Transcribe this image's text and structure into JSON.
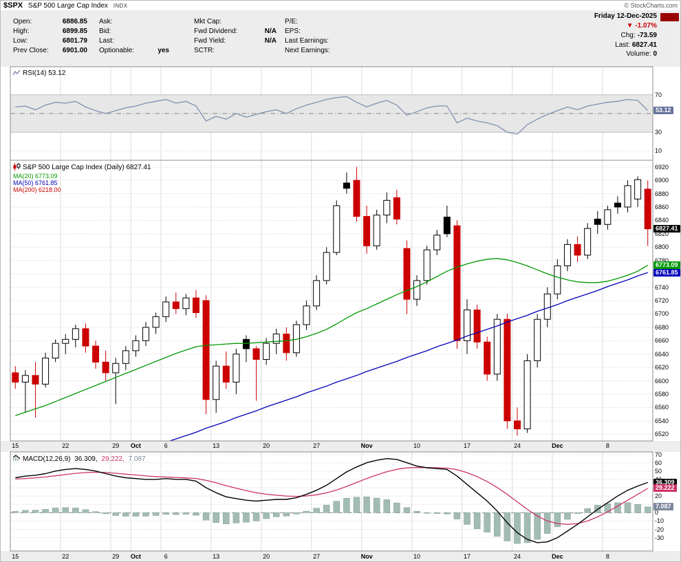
{
  "header": {
    "symbol": "$SPX",
    "name": "S&P 500 Large Cap Index",
    "exchange": "INDX",
    "copyright": "© StockCharts.com"
  },
  "quote": {
    "date": "Friday 12-Dec-2025",
    "columns": [
      [
        {
          "label": "Open:",
          "value": "6886.85"
        },
        {
          "label": "High:",
          "value": "6899.85"
        },
        {
          "label": "Low:",
          "value": "6801.79"
        },
        {
          "label": "Prev Close:",
          "value": "6901.00"
        }
      ],
      [
        {
          "label": "Ask:",
          "value": ""
        },
        {
          "label": "Bid:",
          "value": ""
        },
        {
          "label": "Last:",
          "value": ""
        },
        {
          "label": "Optionable:",
          "value": "yes"
        }
      ],
      [
        {
          "label": "Mkt Cap:",
          "value": ""
        },
        {
          "label": "Fwd Dividend:",
          "value": "N/A"
        },
        {
          "label": "Fwd Yield:",
          "value": "N/A"
        },
        {
          "label": "SCTR:",
          "value": ""
        }
      ],
      [
        {
          "label": "P/E:",
          "value": ""
        },
        {
          "label": "EPS:",
          "value": ""
        },
        {
          "label": "Last Earnings:",
          "value": ""
        },
        {
          "label": "Next Earnings:",
          "value": ""
        }
      ]
    ],
    "change": {
      "arrow": "▼",
      "pct": "-1.07%",
      "rows": [
        {
          "label": "Chg:",
          "value": "-73.59"
        },
        {
          "label": "Last:",
          "value": "6827.41"
        },
        {
          "label": "Volume:",
          "value": "0"
        }
      ]
    }
  },
  "colors": {
    "up_candle": "#000000",
    "down_candle": "#cc0000",
    "ma20": "#009900",
    "ma50": "#0000bb",
    "ma200": "#cc0000",
    "rsi_line": "#8191b2",
    "rsi_box": "#66729b",
    "macd_line": "#000000",
    "signal_line": "#cc3366",
    "histogram": "#a2bcb2",
    "histogram_border": "#86a096",
    "hist_box": "#7d889e",
    "accent_red": "#cc0000",
    "date_box": "#990000",
    "grid_v": "#dcdcdc",
    "grid_h": "#cfcfcf",
    "panel_border": "#8c8c8c",
    "strip_bg": "#ededed"
  },
  "chart_data": {
    "type": "candlestick",
    "x_labels": [
      {
        "idx": 0,
        "label": "15"
      },
      {
        "idx": 5,
        "label": "22"
      },
      {
        "idx": 10,
        "label": "29"
      },
      {
        "idx": 12,
        "label": "Oct"
      },
      {
        "idx": 15,
        "label": "6"
      },
      {
        "idx": 20,
        "label": "13"
      },
      {
        "idx": 25,
        "label": "20"
      },
      {
        "idx": 30,
        "label": "27"
      },
      {
        "idx": 35,
        "label": "Nov"
      },
      {
        "idx": 40,
        "label": "10"
      },
      {
        "idx": 45,
        "label": "17"
      },
      {
        "idx": 50,
        "label": "24"
      },
      {
        "idx": 54,
        "label": "Dec"
      },
      {
        "idx": 59,
        "label": "8"
      }
    ],
    "price_panel": {
      "title": "S&P 500 Large Cap Index (Daily)",
      "last": "6827.41",
      "ylim": [
        6510,
        6930
      ],
      "yticks": [
        6920,
        6900,
        6880,
        6860,
        6840,
        6820,
        6800,
        6780,
        6760,
        6740,
        6720,
        6700,
        6680,
        6660,
        6640,
        6620,
        6600,
        6580,
        6560,
        6540,
        6520
      ],
      "legend": [
        {
          "label": "MA(20)",
          "value": "6773.09",
          "color": "#009900"
        },
        {
          "label": "MA(50)",
          "value": "6761.85",
          "color": "#0000bb"
        },
        {
          "label": "MA(200)",
          "value": "6218.00",
          "color": "#cc0000"
        }
      ],
      "price_boxes": [
        {
          "value": 6827.41,
          "text": "6827.41",
          "bg": "#000000"
        },
        {
          "value": 6773.09,
          "text": "6773.09",
          "bg": "#009900"
        },
        {
          "value": 6761.85,
          "text": "6761.85",
          "bg": "#0000bb"
        }
      ],
      "candles": [
        [
          6612,
          6622,
          6588,
          6598
        ],
        [
          6598,
          6616,
          6552,
          6608
        ],
        [
          6608,
          6628,
          6545,
          6595
        ],
        [
          6595,
          6642,
          6590,
          6634
        ],
        [
          6634,
          6662,
          6628,
          6656
        ],
        [
          6656,
          6670,
          6640,
          6662
        ],
        [
          6662,
          6684,
          6650,
          6678
        ],
        [
          6678,
          6686,
          6642,
          6652
        ],
        [
          6652,
          6660,
          6618,
          6628
        ],
        [
          6628,
          6645,
          6600,
          6612
        ],
        [
          6612,
          6634,
          6565,
          6626
        ],
        [
          6626,
          6652,
          6616,
          6645
        ],
        [
          6645,
          6668,
          6636,
          6660
        ],
        [
          6660,
          6688,
          6652,
          6680
        ],
        [
          6680,
          6702,
          6670,
          6696
        ],
        [
          6696,
          6726,
          6688,
          6718
        ],
        [
          6718,
          6732,
          6700,
          6708
        ],
        [
          6708,
          6730,
          6698,
          6724
        ],
        [
          6724,
          6736,
          6694,
          6702
        ],
        [
          6720,
          6728,
          6550,
          6572
        ],
        [
          6572,
          6630,
          6552,
          6622
        ],
        [
          6622,
          6644,
          6588,
          6598
        ],
        [
          6598,
          6648,
          6580,
          6640
        ],
        [
          6662,
          6668,
          6628,
          6648
        ],
        [
          6648,
          6652,
          6570,
          6632
        ],
        [
          6632,
          6664,
          6624,
          6656
        ],
        [
          6656,
          6678,
          6640,
          6670
        ],
        [
          6670,
          6680,
          6630,
          6642
        ],
        [
          6642,
          6690,
          6636,
          6684
        ],
        [
          6684,
          6720,
          6676,
          6712
        ],
        [
          6712,
          6758,
          6706,
          6750
        ],
        [
          6750,
          6800,
          6744,
          6792
        ],
        [
          6792,
          6870,
          6788,
          6862
        ],
        [
          6896,
          6912,
          6880,
          6888
        ],
        [
          6900,
          6920,
          6838,
          6846
        ],
        [
          6846,
          6862,
          6790,
          6802
        ],
        [
          6802,
          6856,
          6796,
          6848
        ],
        [
          6848,
          6882,
          6836,
          6870
        ],
        [
          6874,
          6886,
          6834,
          6842
        ],
        [
          6798,
          6810,
          6700,
          6722
        ],
        [
          6722,
          6758,
          6712,
          6750
        ],
        [
          6750,
          6802,
          6744,
          6796
        ],
        [
          6796,
          6826,
          6788,
          6818
        ],
        [
          6845,
          6862,
          6815,
          6820
        ],
        [
          6832,
          6840,
          6648,
          6660
        ],
        [
          6660,
          6722,
          6640,
          6706
        ],
        [
          6706,
          6714,
          6648,
          6658
        ],
        [
          6658,
          6666,
          6600,
          6610
        ],
        [
          6610,
          6700,
          6600,
          6692
        ],
        [
          6692,
          6700,
          6528,
          6540
        ],
        [
          6540,
          6560,
          6518,
          6528
        ],
        [
          6528,
          6640,
          6522,
          6630
        ],
        [
          6630,
          6700,
          6620,
          6692
        ],
        [
          6692,
          6740,
          6680,
          6730
        ],
        [
          6730,
          6782,
          6722,
          6772
        ],
        [
          6772,
          6812,
          6764,
          6804
        ],
        [
          6804,
          6816,
          6778,
          6788
        ],
        [
          6788,
          6836,
          6782,
          6828
        ],
        [
          6842,
          6854,
          6820,
          6834
        ],
        [
          6834,
          6862,
          6826,
          6856
        ],
        [
          6866,
          6876,
          6850,
          6860
        ],
        [
          6860,
          6900,
          6852,
          6892
        ],
        [
          6872,
          6906,
          6860,
          6901
        ],
        [
          6886.85,
          6899.85,
          6801.79,
          6827.41
        ]
      ],
      "ma20": [
        6548,
        6553,
        6558,
        6563,
        6569,
        6575,
        6581,
        6587,
        6593,
        6599,
        6605,
        6611,
        6617,
        6623,
        6629,
        6635,
        6641,
        6646,
        6651,
        6653,
        6654,
        6655,
        6656,
        6656,
        6657,
        6658,
        6659,
        6660,
        6662,
        6666,
        6671,
        6677,
        6685,
        6694,
        6702,
        6708,
        6715,
        6722,
        6729,
        6735,
        6741,
        6748,
        6756,
        6764,
        6770,
        6775,
        6779,
        6782,
        6783,
        6781,
        6777,
        6772,
        6766,
        6760,
        6755,
        6751,
        6748,
        6747,
        6747,
        6749,
        6753,
        6758,
        6764,
        6773.09
      ],
      "ma50": [
        6428,
        6433,
        6439,
        6444,
        6449,
        6455,
        6460,
        6465,
        6470,
        6476,
        6481,
        6486,
        6492,
        6497,
        6502,
        6508,
        6513,
        6518,
        6523,
        6529,
        6534,
        6539,
        6545,
        6550,
        6555,
        6561,
        6566,
        6571,
        6576,
        6582,
        6587,
        6592,
        6598,
        6603,
        6608,
        6614,
        6619,
        6624,
        6629,
        6635,
        6640,
        6645,
        6651,
        6656,
        6661,
        6667,
        6672,
        6677,
        6682,
        6688,
        6693,
        6698,
        6704,
        6709,
        6714,
        6720,
        6725,
        6730,
        6735,
        6741,
        6746,
        6751,
        6757,
        6761.85
      ],
      "ma200_value": 6218.0
    },
    "rsi_panel": {
      "label": "RSI(14)",
      "value": "53.12",
      "ylim": [
        0,
        100
      ],
      "yticks": [
        70,
        30,
        10
      ],
      "band": [
        30,
        70
      ],
      "mid": 50,
      "box": {
        "value": 53.12,
        "text": "53.12"
      },
      "values": [
        57,
        58,
        54,
        59,
        62,
        61,
        63,
        57,
        53,
        50,
        53,
        56,
        58,
        61,
        63,
        65,
        61,
        63,
        58,
        42,
        47,
        44,
        50,
        46,
        49,
        52,
        54,
        50,
        55,
        59,
        62,
        65,
        67,
        68,
        62,
        57,
        61,
        64,
        59,
        48,
        52,
        56,
        58,
        58,
        40,
        45,
        42,
        40,
        37,
        30,
        28,
        38,
        44,
        49,
        53,
        57,
        54,
        58,
        60,
        62,
        63,
        65,
        64,
        53.12
      ]
    },
    "macd_panel": {
      "label": "MACD(12,26,9)",
      "values": [
        {
          "text": "36.309,",
          "color": "#000000"
        },
        {
          "text": "29.222,",
          "color": "#cc3366"
        },
        {
          "text": "7.087",
          "color": "#7d889e"
        }
      ],
      "ylim": [
        -46,
        73
      ],
      "yticks": [
        70,
        60,
        50,
        40,
        20,
        0,
        -10,
        -20,
        -30
      ],
      "grid": [
        70,
        60,
        50,
        40,
        30,
        20,
        10,
        -10,
        -20,
        -30
      ],
      "boxes": [
        {
          "value": 36.309,
          "text": "36.309",
          "bg": "#000000"
        },
        {
          "value": 29.222,
          "text": "29.222",
          "bg": "#cc3366"
        },
        {
          "value": 7.087,
          "text": "7.087",
          "bg": "#7d889e"
        }
      ],
      "macd": [
        42,
        44,
        45,
        47,
        50,
        52,
        53,
        52,
        50,
        47,
        44,
        42,
        41,
        40,
        40,
        41,
        40,
        40,
        38,
        30,
        24,
        19,
        17,
        15,
        14,
        15,
        16,
        16,
        18,
        22,
        27,
        33,
        41,
        49,
        55,
        60,
        63,
        65,
        64,
        60,
        56,
        54,
        53,
        52,
        44,
        34,
        24,
        14,
        2,
        -12,
        -24,
        -32,
        -36,
        -35,
        -30,
        -22,
        -14,
        -5,
        4,
        12,
        20,
        27,
        32,
        36.309
      ],
      "signal": [
        40.4,
        41.1,
        41.9,
        42.9,
        44.3,
        45.8,
        47.3,
        48.2,
        48.6,
        48.3,
        47.4,
        46.3,
        45.3,
        44.2,
        43.4,
        42.9,
        42.3,
        41.8,
        41.1,
        38.9,
        35.9,
        32.5,
        29.4,
        26.5,
        24,
        22.2,
        21,
        20,
        19.6,
        20.1,
        21.5,
        23.8,
        27.2,
        31.6,
        36.3,
        41,
        45.4,
        49.3,
        52.2,
        53.8,
        54.2,
        54.2,
        54,
        53.6,
        51.7,
        48.1,
        43.3,
        37.4,
        30.3,
        22,
        13,
        4,
        -4,
        -10,
        -13,
        -14,
        -13,
        -10,
        -5,
        1,
        8,
        15,
        22,
        29.222
      ]
    }
  }
}
